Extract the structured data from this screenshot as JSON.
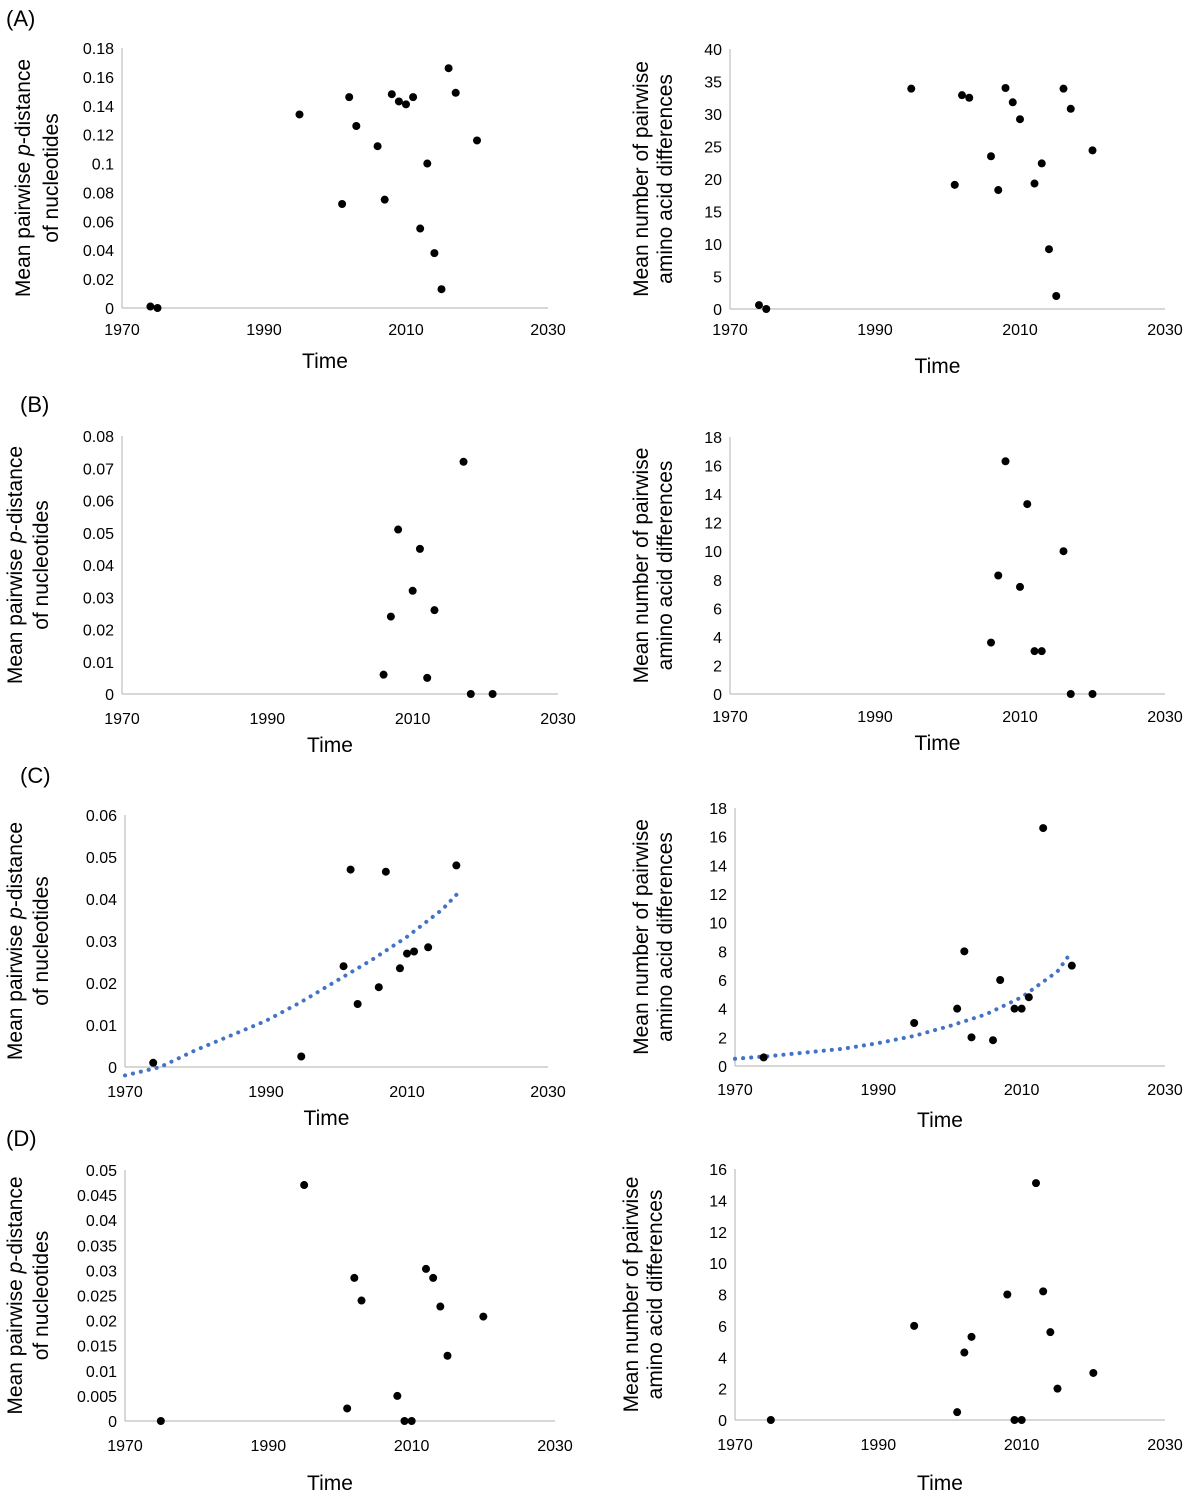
{
  "chart_data": [
    {
      "panel": "(A)",
      "type": "scatter",
      "xlabel": "Time",
      "ylabel": [
        "Mean pairwise ",
        "p",
        "-distance",
        "of nucleotides"
      ],
      "xlim": [
        1970,
        2030
      ],
      "xticks": [
        1970,
        1990,
        2010,
        2030
      ],
      "ylim": [
        0,
        0.18
      ],
      "yticks": [
        "0",
        "0.02",
        "0.04",
        "0.06",
        "0.08",
        "0.1",
        "0.12",
        "0.14",
        "0.16",
        "0.18"
      ],
      "points": [
        [
          1974,
          0.001
        ],
        [
          1975,
          0.0
        ],
        [
          1995,
          0.134
        ],
        [
          2001,
          0.072
        ],
        [
          2002,
          0.146
        ],
        [
          2003,
          0.126
        ],
        [
          2006,
          0.112
        ],
        [
          2007,
          0.075
        ],
        [
          2008,
          0.148
        ],
        [
          2009,
          0.143
        ],
        [
          2010,
          0.141
        ],
        [
          2011,
          0.146
        ],
        [
          2012,
          0.055
        ],
        [
          2013,
          0.1
        ],
        [
          2014,
          0.038
        ],
        [
          2015,
          0.013
        ],
        [
          2016,
          0.166
        ],
        [
          2017,
          0.149
        ],
        [
          2020,
          0.116
        ]
      ],
      "trend": null
    },
    {
      "panel": "",
      "type": "scatter",
      "xlabel": "Time",
      "ylabel": [
        "Mean number of pairwise",
        "",
        "",
        "amino acid differences"
      ],
      "xlim": [
        1970,
        2030
      ],
      "xticks": [
        1970,
        1990,
        2010,
        2030
      ],
      "ylim": [
        0,
        40
      ],
      "yticks": [
        "0",
        "5",
        "10",
        "15",
        "20",
        "25",
        "30",
        "35",
        "40"
      ],
      "points": [
        [
          1974,
          0.6
        ],
        [
          1975,
          0.0
        ],
        [
          1995,
          33.9
        ],
        [
          2001,
          19.1
        ],
        [
          2002,
          32.9
        ],
        [
          2003,
          32.5
        ],
        [
          2006,
          23.5
        ],
        [
          2007,
          18.3
        ],
        [
          2008,
          34.0
        ],
        [
          2009,
          31.8
        ],
        [
          2010,
          29.2
        ],
        [
          2012,
          19.3
        ],
        [
          2013,
          22.4
        ],
        [
          2014,
          9.2
        ],
        [
          2015,
          2.0
        ],
        [
          2016,
          33.9
        ],
        [
          2017,
          30.8
        ],
        [
          2020,
          24.4
        ]
      ],
      "trend": null
    },
    {
      "panel": "(B)",
      "type": "scatter",
      "xlabel": "Time",
      "ylabel": [
        "Mean pairwise ",
        "p",
        "-distance",
        "of nucleotides"
      ],
      "xlim": [
        1970,
        2030
      ],
      "xticks": [
        1970,
        1990,
        2010,
        2030
      ],
      "ylim": [
        0,
        0.08
      ],
      "yticks": [
        "0",
        "0.01",
        "0.02",
        "0.03",
        "0.04",
        "0.05",
        "0.06",
        "0.07",
        "0.08"
      ],
      "points": [
        [
          2006,
          0.006
        ],
        [
          2007,
          0.024
        ],
        [
          2008,
          0.051
        ],
        [
          2010,
          0.032
        ],
        [
          2011,
          0.045
        ],
        [
          2012,
          0.005
        ],
        [
          2013,
          0.026
        ],
        [
          2017,
          0.072
        ],
        [
          2018,
          0.0
        ],
        [
          2021,
          0.0
        ]
      ],
      "trend": null
    },
    {
      "panel": "",
      "type": "scatter",
      "xlabel": "Time",
      "ylabel": [
        "Mean number of pairwise",
        "",
        "",
        "amino acid differences"
      ],
      "xlim": [
        1970,
        2030
      ],
      "xticks": [
        1970,
        1990,
        2010,
        2030
      ],
      "ylim": [
        0,
        18
      ],
      "yticks": [
        "0",
        "2",
        "4",
        "6",
        "8",
        "10",
        "12",
        "14",
        "16",
        "18"
      ],
      "points": [
        [
          2006,
          3.6
        ],
        [
          2007,
          8.3
        ],
        [
          2008,
          16.3
        ],
        [
          2010,
          7.5
        ],
        [
          2011,
          13.3
        ],
        [
          2012,
          3.0
        ],
        [
          2013,
          3.0
        ],
        [
          2016,
          10.0
        ],
        [
          2017,
          0.0
        ],
        [
          2020,
          0.0
        ]
      ],
      "trend": null
    },
    {
      "panel": "(C)",
      "type": "scatter",
      "xlabel": "Time",
      "ylabel": [
        "Mean pairwise ",
        "p",
        "-distance",
        "of nucleotides"
      ],
      "xlim": [
        1970,
        2030
      ],
      "xticks": [
        1970,
        1990,
        2010,
        2030
      ],
      "ylim": [
        0,
        0.06
      ],
      "yticks": [
        "0",
        "0.01",
        "0.02",
        "0.03",
        "0.04",
        "0.05",
        "0.06"
      ],
      "points": [
        [
          1974,
          0.001
        ],
        [
          1995,
          0.0025
        ],
        [
          2001,
          0.024
        ],
        [
          2002,
          0.047
        ],
        [
          2003,
          0.015
        ],
        [
          2006,
          0.019
        ],
        [
          2007,
          0.0465
        ],
        [
          2009,
          0.0235
        ],
        [
          2010,
          0.027
        ],
        [
          2011,
          0.0275
        ],
        [
          2013,
          0.0285
        ],
        [
          2017,
          0.048
        ]
      ],
      "trend": {
        "x": [
          1970,
          1975,
          1980,
          1985,
          1990,
          1995,
          2000,
          2005,
          2010,
          2015,
          2017
        ],
        "y": [
          -0.002,
          0.0,
          0.004,
          0.0075,
          0.011,
          0.0155,
          0.0205,
          0.0255,
          0.031,
          0.0375,
          0.041
        ]
      }
    },
    {
      "panel": "",
      "type": "scatter",
      "xlabel": "Time",
      "ylabel": [
        "Mean number of pairwise",
        "",
        "",
        "amino acid differences"
      ],
      "xlim": [
        1970,
        2030
      ],
      "xticks": [
        1970,
        1990,
        2010,
        2030
      ],
      "ylim": [
        0,
        18
      ],
      "yticks": [
        "0",
        "2",
        "4",
        "6",
        "8",
        "10",
        "12",
        "14",
        "16",
        "18"
      ],
      "points": [
        [
          1974,
          0.6
        ],
        [
          1995,
          3.0
        ],
        [
          2001,
          4.0
        ],
        [
          2002,
          8.0
        ],
        [
          2003,
          2.0
        ],
        [
          2006,
          1.8
        ],
        [
          2007,
          6.0
        ],
        [
          2009,
          4.0
        ],
        [
          2010,
          4.0
        ],
        [
          2011,
          4.8
        ],
        [
          2013,
          16.6
        ],
        [
          2017,
          7.0
        ]
      ],
      "trend": {
        "x": [
          1970,
          1975,
          1980,
          1985,
          1990,
          1995,
          2000,
          2005,
          2010,
          2015,
          2017
        ],
        "y": [
          0.5,
          0.7,
          0.95,
          1.2,
          1.6,
          2.1,
          2.8,
          3.6,
          4.8,
          6.6,
          8.0
        ]
      }
    },
    {
      "panel": "(D)",
      "type": "scatter",
      "xlabel": "Time",
      "ylabel": [
        "Mean pairwise ",
        "p",
        "-distance",
        "of nucleotides"
      ],
      "xlim": [
        1970,
        2030
      ],
      "xticks": [
        1970,
        1990,
        2010,
        2030
      ],
      "ylim": [
        0,
        0.05
      ],
      "yticks": [
        "0",
        "0.005",
        "0.01",
        "0.015",
        "0.02",
        "0.025",
        "0.03",
        "0.035",
        "0.04",
        "0.045",
        "0.05"
      ],
      "points": [
        [
          1975,
          0.0
        ],
        [
          1995,
          0.047
        ],
        [
          2001,
          0.0025
        ],
        [
          2002,
          0.0285
        ],
        [
          2003,
          0.024
        ],
        [
          2008,
          0.005
        ],
        [
          2009,
          0.0
        ],
        [
          2010,
          0.0
        ],
        [
          2012,
          0.0303
        ],
        [
          2013,
          0.0285
        ],
        [
          2014,
          0.0228
        ],
        [
          2015,
          0.013
        ],
        [
          2020,
          0.0208
        ]
      ],
      "trend": null
    },
    {
      "panel": "",
      "type": "scatter",
      "xlabel": "Time",
      "ylabel": [
        "Mean number of pairwise",
        "",
        "",
        "amino acid differences"
      ],
      "xlim": [
        1970,
        2030
      ],
      "xticks": [
        1970,
        1990,
        2010,
        2030
      ],
      "ylim": [
        0,
        16
      ],
      "yticks": [
        "0",
        "2",
        "4",
        "6",
        "8",
        "10",
        "12",
        "14",
        "16"
      ],
      "points": [
        [
          1975,
          0.0
        ],
        [
          1995,
          6.0
        ],
        [
          2001,
          0.5
        ],
        [
          2002,
          4.3
        ],
        [
          2003,
          5.3
        ],
        [
          2008,
          8.0
        ],
        [
          2009,
          0.0
        ],
        [
          2010,
          0.0
        ],
        [
          2012,
          15.1
        ],
        [
          2013,
          8.2
        ],
        [
          2014,
          5.6
        ],
        [
          2015,
          2.0
        ],
        [
          2020,
          3.0
        ]
      ],
      "trend": null
    }
  ],
  "colors": {
    "points": "#000000",
    "trend": "#4472c4",
    "axis": "#bfbfbf"
  }
}
